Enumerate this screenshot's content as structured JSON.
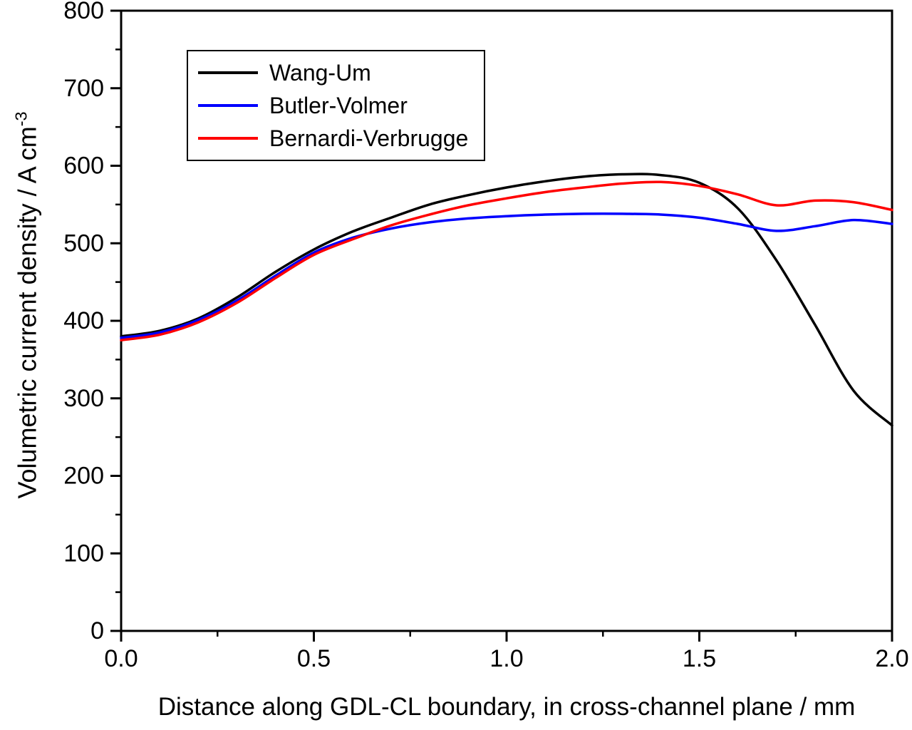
{
  "chart_data": {
    "type": "line",
    "title": "",
    "xlabel": "Distance along GDL-CL boundary, in cross-channel plane / mm",
    "ylabel_main": "Volumetric current density / A cm",
    "ylabel_sup": "-3",
    "xlim": [
      0,
      2
    ],
    "ylim": [
      0,
      800
    ],
    "grid": false,
    "legend_position": "top-left",
    "x_major_ticks": [
      0.0,
      0.5,
      1.0,
      1.5,
      2.0
    ],
    "x_tick_labels": [
      "0.0",
      "0.5",
      "1.0",
      "1.5",
      "2.0"
    ],
    "x_minor_step": 0.25,
    "y_major_ticks": [
      0,
      100,
      200,
      300,
      400,
      500,
      600,
      700,
      800
    ],
    "y_tick_labels": [
      "0",
      "100",
      "200",
      "300",
      "400",
      "500",
      "600",
      "700",
      "800"
    ],
    "y_minor_step": 50,
    "x": [
      0.0,
      0.1,
      0.2,
      0.3,
      0.4,
      0.5,
      0.6,
      0.7,
      0.8,
      0.9,
      1.0,
      1.1,
      1.2,
      1.3,
      1.4,
      1.5,
      1.6,
      1.7,
      1.8,
      1.9,
      2.0
    ],
    "series": [
      {
        "name": "Wang-Um",
        "color": "#000000",
        "values": [
          380,
          387,
          403,
          430,
          463,
          492,
          515,
          533,
          550,
          562,
          572,
          580,
          586,
          589,
          588,
          578,
          545,
          478,
          395,
          310,
          265
        ]
      },
      {
        "name": "Butler-Volmer",
        "color": "#0000ff",
        "values": [
          378,
          385,
          401,
          426,
          458,
          488,
          507,
          519,
          527,
          532,
          535,
          537,
          538,
          538,
          537,
          533,
          525,
          516,
          522,
          530,
          525
        ]
      },
      {
        "name": "Bernardi-Verbrugge",
        "color": "#ff0000",
        "values": [
          375,
          382,
          398,
          423,
          455,
          485,
          505,
          523,
          537,
          549,
          558,
          566,
          572,
          577,
          579,
          574,
          563,
          549,
          555,
          553,
          543
        ]
      }
    ]
  }
}
